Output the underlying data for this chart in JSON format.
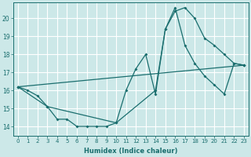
{
  "xlabel": "Humidex (Indice chaleur)",
  "background_color": "#cce8e8",
  "grid_color": "#ffffff",
  "line_color": "#1a6e6e",
  "xlim": [
    -0.5,
    23.5
  ],
  "ylim": [
    13.5,
    20.9
  ],
  "yticks": [
    14,
    15,
    16,
    17,
    18,
    19,
    20
  ],
  "xticks": [
    0,
    1,
    2,
    3,
    4,
    5,
    6,
    7,
    8,
    9,
    10,
    11,
    12,
    13,
    14,
    15,
    16,
    17,
    18,
    19,
    20,
    21,
    22,
    23
  ],
  "line1_x": [
    0,
    1,
    2,
    3,
    4,
    5,
    6,
    7,
    8,
    9,
    10,
    11,
    12,
    13,
    14,
    15,
    16,
    17,
    18,
    19,
    20,
    21,
    22,
    23
  ],
  "line1_y": [
    16.2,
    16.0,
    15.7,
    15.1,
    14.4,
    14.4,
    14.0,
    14.0,
    14.0,
    14.0,
    14.2,
    16.0,
    17.2,
    18.0,
    15.8,
    19.4,
    20.4,
    20.6,
    20.0,
    18.9,
    18.5,
    18.0,
    17.5,
    17.4
  ],
  "line2_x": [
    0,
    23
  ],
  "line2_y": [
    16.2,
    17.4
  ],
  "line3_x": [
    0,
    3,
    10,
    14,
    15,
    16,
    17,
    18,
    19,
    20,
    21,
    22,
    23
  ],
  "line3_y": [
    16.2,
    15.1,
    14.2,
    16.0,
    19.4,
    20.6,
    18.5,
    17.5,
    16.8,
    16.3,
    15.8,
    17.5,
    17.4
  ]
}
